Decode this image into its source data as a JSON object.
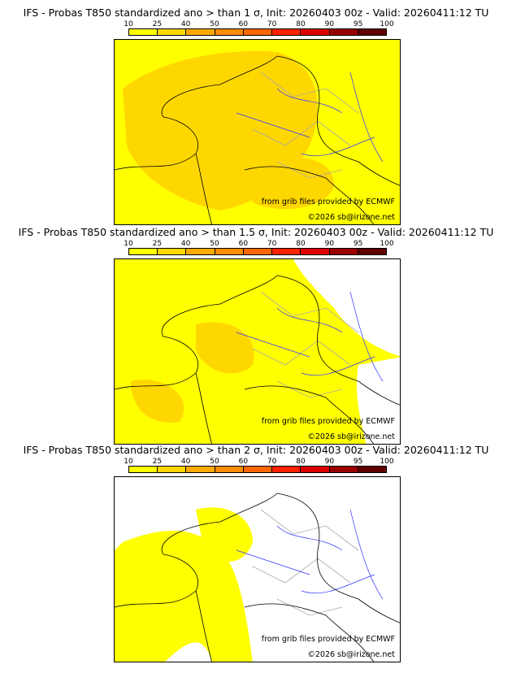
{
  "colorbar": {
    "ticks": [
      "10",
      "25",
      "40",
      "50",
      "60",
      "70",
      "80",
      "90",
      "95",
      "100"
    ],
    "colors": [
      "#ffff00",
      "#ffd700",
      "#ffaa00",
      "#ff8c00",
      "#ff6600",
      "#ff2200",
      "#dd0000",
      "#990000",
      "#600000"
    ]
  },
  "panels": [
    {
      "title": "IFS - Probas T850  standardized ano > than 1 σ, Init: 20260403 00z - Valid: 20260411:12 TU",
      "coverage": "high"
    },
    {
      "title": "IFS - Probas T850  standardized ano > than 1.5 σ, Init: 20260403 00z - Valid: 20260411:12 TU",
      "coverage": "medium"
    },
    {
      "title": "IFS - Probas T850  standardized ano > than 2 σ, Init: 20260403 00z - Valid: 20260411:12 TU",
      "coverage": "low"
    }
  ],
  "credits": {
    "source": "from grib files provided by ECMWF",
    "copyright": "©2026 sb@irizone.net"
  }
}
